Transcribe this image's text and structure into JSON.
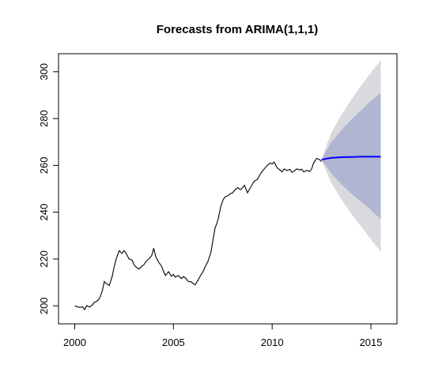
{
  "chart_data": {
    "type": "line",
    "title": "Forecasts from ARIMA(1,1,1)",
    "xlabel": "",
    "ylabel": "",
    "xlim": [
      1999.5,
      2016.0
    ],
    "ylim": [
      195,
      305
    ],
    "x_ticks": [
      2000,
      2005,
      2010,
      2015
    ],
    "y_ticks": [
      200,
      220,
      240,
      260,
      280,
      300
    ],
    "grid": false,
    "legend": "none",
    "colors": {
      "history": "#000000",
      "forecast": "#0000ff",
      "band_95": "#d9d9de",
      "band_80": "#b0b6d2"
    },
    "history": {
      "x": [
        2000.0,
        2000.25,
        2000.4,
        2000.5,
        2000.6,
        2000.75,
        2000.9,
        2001.0,
        2001.1,
        2001.25,
        2001.4,
        2001.5,
        2001.6,
        2001.75,
        2001.9,
        2002.0,
        2002.1,
        2002.25,
        2002.4,
        2002.5,
        2002.6,
        2002.75,
        2002.9,
        2003.0,
        2003.1,
        2003.25,
        2003.4,
        2003.5,
        2003.6,
        2003.75,
        2003.9,
        2004.0,
        2004.1,
        2004.25,
        2004.4,
        2004.5,
        2004.6,
        2004.75,
        2004.9,
        2005.0,
        2005.1,
        2005.25,
        2005.4,
        2005.5,
        2005.6,
        2005.75,
        2005.9,
        2006.0,
        2006.1,
        2006.25,
        2006.4,
        2006.5,
        2006.6,
        2006.75,
        2006.9,
        2007.0,
        2007.1,
        2007.25,
        2007.4,
        2007.5,
        2007.6,
        2007.75,
        2007.9,
        2008.0,
        2008.1,
        2008.25,
        2008.4,
        2008.5,
        2008.6,
        2008.75,
        2008.9,
        2009.0,
        2009.1,
        2009.25,
        2009.4,
        2009.5,
        2009.6,
        2009.75,
        2009.9,
        2010.0,
        2010.1,
        2010.25,
        2010.4,
        2010.5,
        2010.6,
        2010.75,
        2010.9,
        2011.0,
        2011.1,
        2011.25,
        2011.4,
        2011.5,
        2011.6,
        2011.75,
        2011.9,
        2012.0,
        2012.1,
        2012.25,
        2012.4,
        2012.5
      ],
      "y": [
        200.0,
        199.3,
        199.6,
        198.4,
        200.1,
        199.5,
        200.4,
        201.6,
        201.8,
        203.1,
        206.4,
        210.4,
        209.5,
        208.7,
        212.6,
        216.7,
        220.0,
        223.5,
        222.4,
        223.6,
        222.5,
        220.0,
        219.6,
        217.6,
        216.6,
        215.7,
        216.9,
        217.5,
        218.9,
        220.0,
        221.5,
        224.6,
        221.0,
        218.7,
        216.9,
        214.7,
        213.0,
        214.6,
        212.6,
        213.4,
        212.2,
        213.0,
        211.6,
        212.5,
        212.0,
        210.4,
        210.3,
        209.5,
        209.0,
        211.0,
        213.4,
        214.6,
        216.6,
        219.0,
        223.0,
        228.0,
        233.0,
        236.5,
        242.5,
        245.0,
        246.5,
        247.0,
        248.0,
        248.2,
        249.4,
        250.5,
        249.6,
        250.5,
        251.5,
        248.3,
        250.5,
        252.0,
        253.3,
        254.0,
        256.3,
        257.5,
        258.5,
        260.0,
        261.0,
        260.6,
        261.4,
        259.0,
        258.0,
        257.2,
        258.5,
        257.8,
        258.3,
        257.0,
        257.5,
        258.5,
        258.0,
        258.4,
        257.2,
        257.9,
        257.4,
        258.5,
        261.0,
        263.0,
        262.5,
        261.6
      ]
    },
    "forecast": {
      "x": [
        2012.5,
        2012.75,
        2013.0,
        2013.5,
        2014.0,
        2014.5,
        2015.0,
        2015.5
      ],
      "mean": [
        262.4,
        262.9,
        263.2,
        263.5,
        263.6,
        263.7,
        263.7,
        263.7
      ],
      "lo80": [
        262.4,
        259.5,
        256.5,
        252.0,
        248.0,
        244.5,
        241.0,
        237.0
      ],
      "hi80": [
        262.4,
        266.3,
        270.0,
        275.0,
        279.5,
        283.5,
        287.5,
        291.0
      ],
      "lo95": [
        262.4,
        257.3,
        252.5,
        245.5,
        239.5,
        234.0,
        228.5,
        223.0
      ],
      "hi95": [
        262.4,
        268.5,
        274.0,
        281.5,
        288.0,
        294.0,
        299.5,
        305.0
      ]
    }
  }
}
